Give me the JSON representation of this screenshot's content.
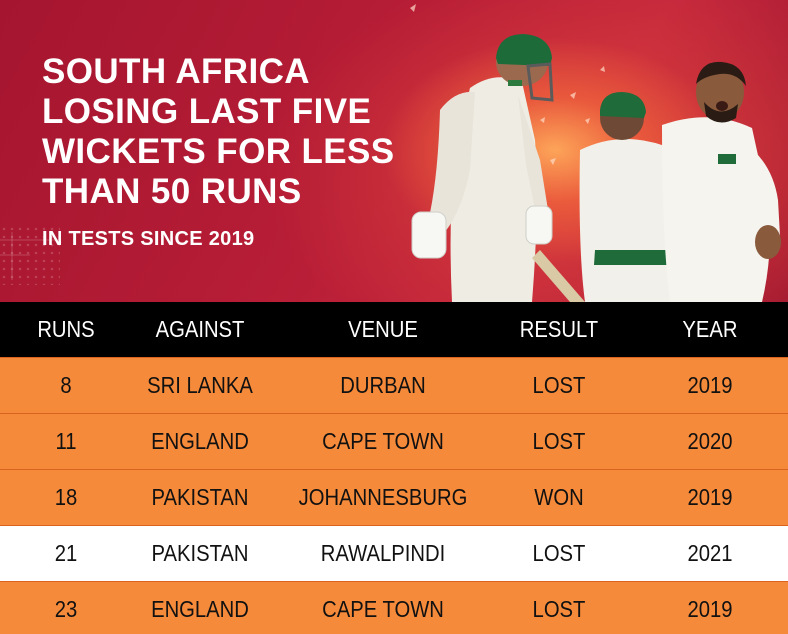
{
  "title_lines": [
    "SOUTH AFRICA",
    "LOSING LAST FIVE",
    "WICKETS FOR LESS",
    "THAN 50 RUNS"
  ],
  "subtitle": "IN TESTS SINCE 2019",
  "colors": {
    "background_red": "#a91a33",
    "header_black": "#000000",
    "row_orange": "#f58a3a",
    "row_white": "#ffffff"
  },
  "table": {
    "columns": [
      "RUNS",
      "AGAINST",
      "VENUE",
      "RESULT",
      "YEAR"
    ],
    "rows": [
      {
        "runs": "8",
        "against": "SRI LANKA",
        "venue": "DURBAN",
        "result": "LOST",
        "year": "2019",
        "style": "orange"
      },
      {
        "runs": "11",
        "against": "ENGLAND",
        "venue": "CAPE TOWN",
        "result": "LOST",
        "year": "2020",
        "style": "orange"
      },
      {
        "runs": "18",
        "against": "PAKISTAN",
        "venue": "JOHANNESBURG",
        "result": "WON",
        "year": "2019",
        "style": "orange"
      },
      {
        "runs": "21",
        "against": "PAKISTAN",
        "venue": "RAWALPINDI",
        "result": "LOST",
        "year": "2021",
        "style": "white"
      },
      {
        "runs": "23",
        "against": "ENGLAND",
        "venue": "CAPE TOWN",
        "result": "LOST",
        "year": "2019",
        "style": "orange"
      }
    ]
  }
}
